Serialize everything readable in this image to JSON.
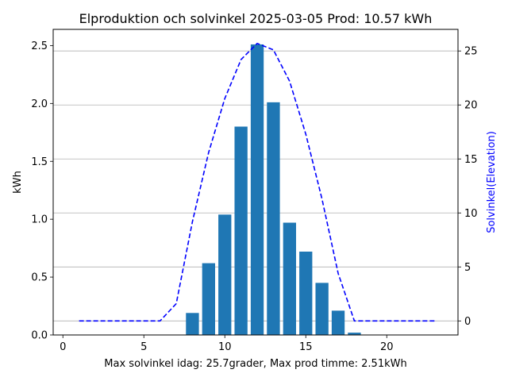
{
  "chart_data": {
    "type": "bar",
    "title": "Elproduktion och solvinkel 2025-03-05 Prod: 10.57 kWh",
    "xlabel": "Max solvinkel idag: 25.7grader, Max prod timme: 2.51kWh",
    "ylabel": "kWh",
    "y2label": "Solvinkel(Elevation)",
    "xlim": [
      -0.6,
      24.4
    ],
    "ylim": [
      0,
      2.64
    ],
    "y2lim": [
      -1.3,
      27.0
    ],
    "xticks": [
      0,
      5,
      10,
      15,
      20
    ],
    "yticks": [
      0.0,
      0.5,
      1.0,
      1.5,
      2.0,
      2.5
    ],
    "y2ticks": [
      0,
      5,
      10,
      15,
      20,
      25
    ],
    "y2_gridlines": true,
    "bar_series": {
      "name": "",
      "color": "#1f77b4",
      "x": [
        8,
        9,
        10,
        11,
        12,
        13,
        14,
        15,
        16,
        17,
        18
      ],
      "values": [
        0.19,
        0.62,
        1.04,
        1.8,
        2.51,
        2.01,
        0.97,
        0.72,
        0.45,
        0.21,
        0.02
      ]
    },
    "line_series": {
      "name": "",
      "color": "#0000ff",
      "style": "dashed",
      "axis": "right",
      "x": [
        1,
        2,
        3,
        4,
        5,
        6,
        7,
        8,
        9,
        10,
        11,
        12,
        13,
        14,
        15,
        16,
        17,
        18,
        19,
        20,
        21,
        22,
        23
      ],
      "values": [
        0,
        0,
        0,
        0,
        0,
        0,
        1.6,
        9.2,
        15.6,
        20.6,
        24.2,
        25.7,
        25.1,
        22.2,
        17.3,
        11.3,
        4.4,
        0,
        0,
        0,
        0,
        0,
        0
      ]
    }
  }
}
